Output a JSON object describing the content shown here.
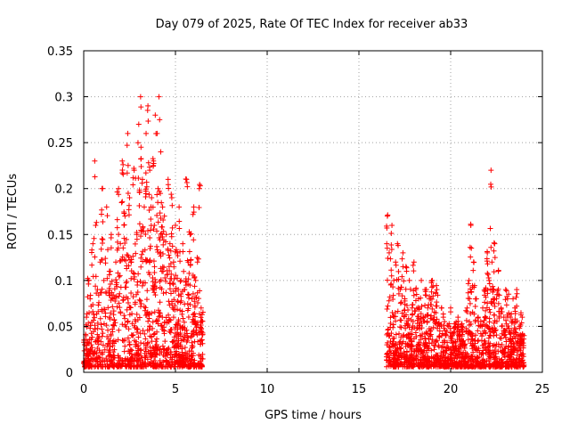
{
  "chart_data": {
    "type": "scatter",
    "title": "Day 079 of 2025, Rate Of TEC Index for receiver ab33",
    "xlabel": "GPS time / hours",
    "ylabel": "ROTI / TECUs",
    "xlim": [
      0,
      25
    ],
    "ylim": [
      0,
      0.35
    ],
    "x_ticks": [
      "0",
      "5",
      "10",
      "15",
      "20",
      "25"
    ],
    "x_tick_values": [
      0,
      5,
      10,
      15,
      20,
      25
    ],
    "y_ticks": [
      "0",
      "0.05",
      "0.1",
      "0.15",
      "0.2",
      "0.25",
      "0.3",
      "0.35"
    ],
    "y_tick_values": [
      0,
      0.05,
      0.1,
      0.15,
      0.2,
      0.25,
      0.3,
      0.35
    ],
    "grid": true,
    "marker": "+",
    "series_color": "#ff0000",
    "segments": [
      {
        "x_range": [
          0.0,
          6.5
        ]
      },
      {
        "x_range": [
          16.5,
          24.0
        ]
      }
    ],
    "series": [
      {
        "x": [
          0.05,
          0.15,
          0.25,
          0.35,
          0.5,
          0.6,
          0.65,
          0.75,
          0.9,
          1.0,
          1.1,
          1.25,
          1.4,
          1.5,
          1.6,
          1.75,
          1.9,
          2.0,
          2.1,
          2.25,
          2.4,
          2.5,
          2.6,
          2.75,
          2.9,
          3.0,
          3.1,
          3.2,
          3.3,
          3.4,
          3.5,
          3.6,
          3.7,
          3.8,
          3.85,
          3.9,
          4.0,
          4.05,
          4.1,
          4.2,
          4.3,
          4.4,
          4.5,
          4.6,
          4.7,
          4.8,
          4.9,
          5.0,
          5.1,
          5.2,
          5.3,
          5.4,
          5.5,
          5.6,
          5.7,
          5.8,
          5.9,
          6.0,
          6.1,
          6.2,
          6.3,
          6.4,
          16.55,
          16.65,
          16.8,
          16.9,
          17.0,
          17.1,
          17.25,
          17.4,
          17.5,
          17.6,
          17.75,
          17.9,
          18.0,
          18.1,
          18.25,
          18.4,
          18.5,
          18.6,
          18.75,
          18.9,
          19.0,
          19.1,
          19.25,
          19.4,
          19.5,
          19.6,
          19.75,
          19.9,
          20.0,
          20.1,
          20.25,
          20.4,
          20.5,
          20.6,
          20.75,
          20.9,
          21.0,
          21.1,
          21.25,
          21.4,
          21.5,
          21.6,
          21.75,
          21.9,
          22.0,
          22.1,
          22.2,
          22.25,
          22.3,
          22.4,
          22.5,
          22.6,
          22.75,
          22.9,
          23.0,
          23.1,
          23.25,
          23.4,
          23.5,
          23.6,
          23.75,
          23.9,
          24.0
        ],
        "y": [
          0.03,
          0.06,
          0.1,
          0.08,
          0.14,
          0.23,
          0.16,
          0.09,
          0.12,
          0.2,
          0.1,
          0.18,
          0.11,
          0.15,
          0.08,
          0.12,
          0.2,
          0.14,
          0.23,
          0.17,
          0.26,
          0.19,
          0.12,
          0.22,
          0.15,
          0.27,
          0.3,
          0.21,
          0.18,
          0.26,
          0.29,
          0.22,
          0.19,
          0.23,
          0.16,
          0.28,
          0.26,
          0.2,
          0.3,
          0.24,
          0.18,
          0.17,
          0.15,
          0.21,
          0.14,
          0.19,
          0.12,
          0.16,
          0.13,
          0.18,
          0.1,
          0.14,
          0.09,
          0.21,
          0.12,
          0.15,
          0.08,
          0.18,
          0.1,
          0.12,
          0.2,
          0.07,
          0.17,
          0.13,
          0.16,
          0.1,
          0.12,
          0.14,
          0.09,
          0.13,
          0.08,
          0.11,
          0.1,
          0.07,
          0.12,
          0.09,
          0.08,
          0.1,
          0.06,
          0.09,
          0.07,
          0.08,
          0.1,
          0.06,
          0.09,
          0.05,
          0.07,
          0.06,
          0.04,
          0.05,
          0.07,
          0.04,
          0.05,
          0.06,
          0.04,
          0.05,
          0.03,
          0.07,
          0.1,
          0.16,
          0.12,
          0.08,
          0.06,
          0.05,
          0.07,
          0.09,
          0.13,
          0.1,
          0.22,
          0.12,
          0.09,
          0.14,
          0.08,
          0.11,
          0.07,
          0.06,
          0.09,
          0.08,
          0.06,
          0.08,
          0.07,
          0.09,
          0.05,
          0.06,
          0.04
        ]
      }
    ]
  }
}
